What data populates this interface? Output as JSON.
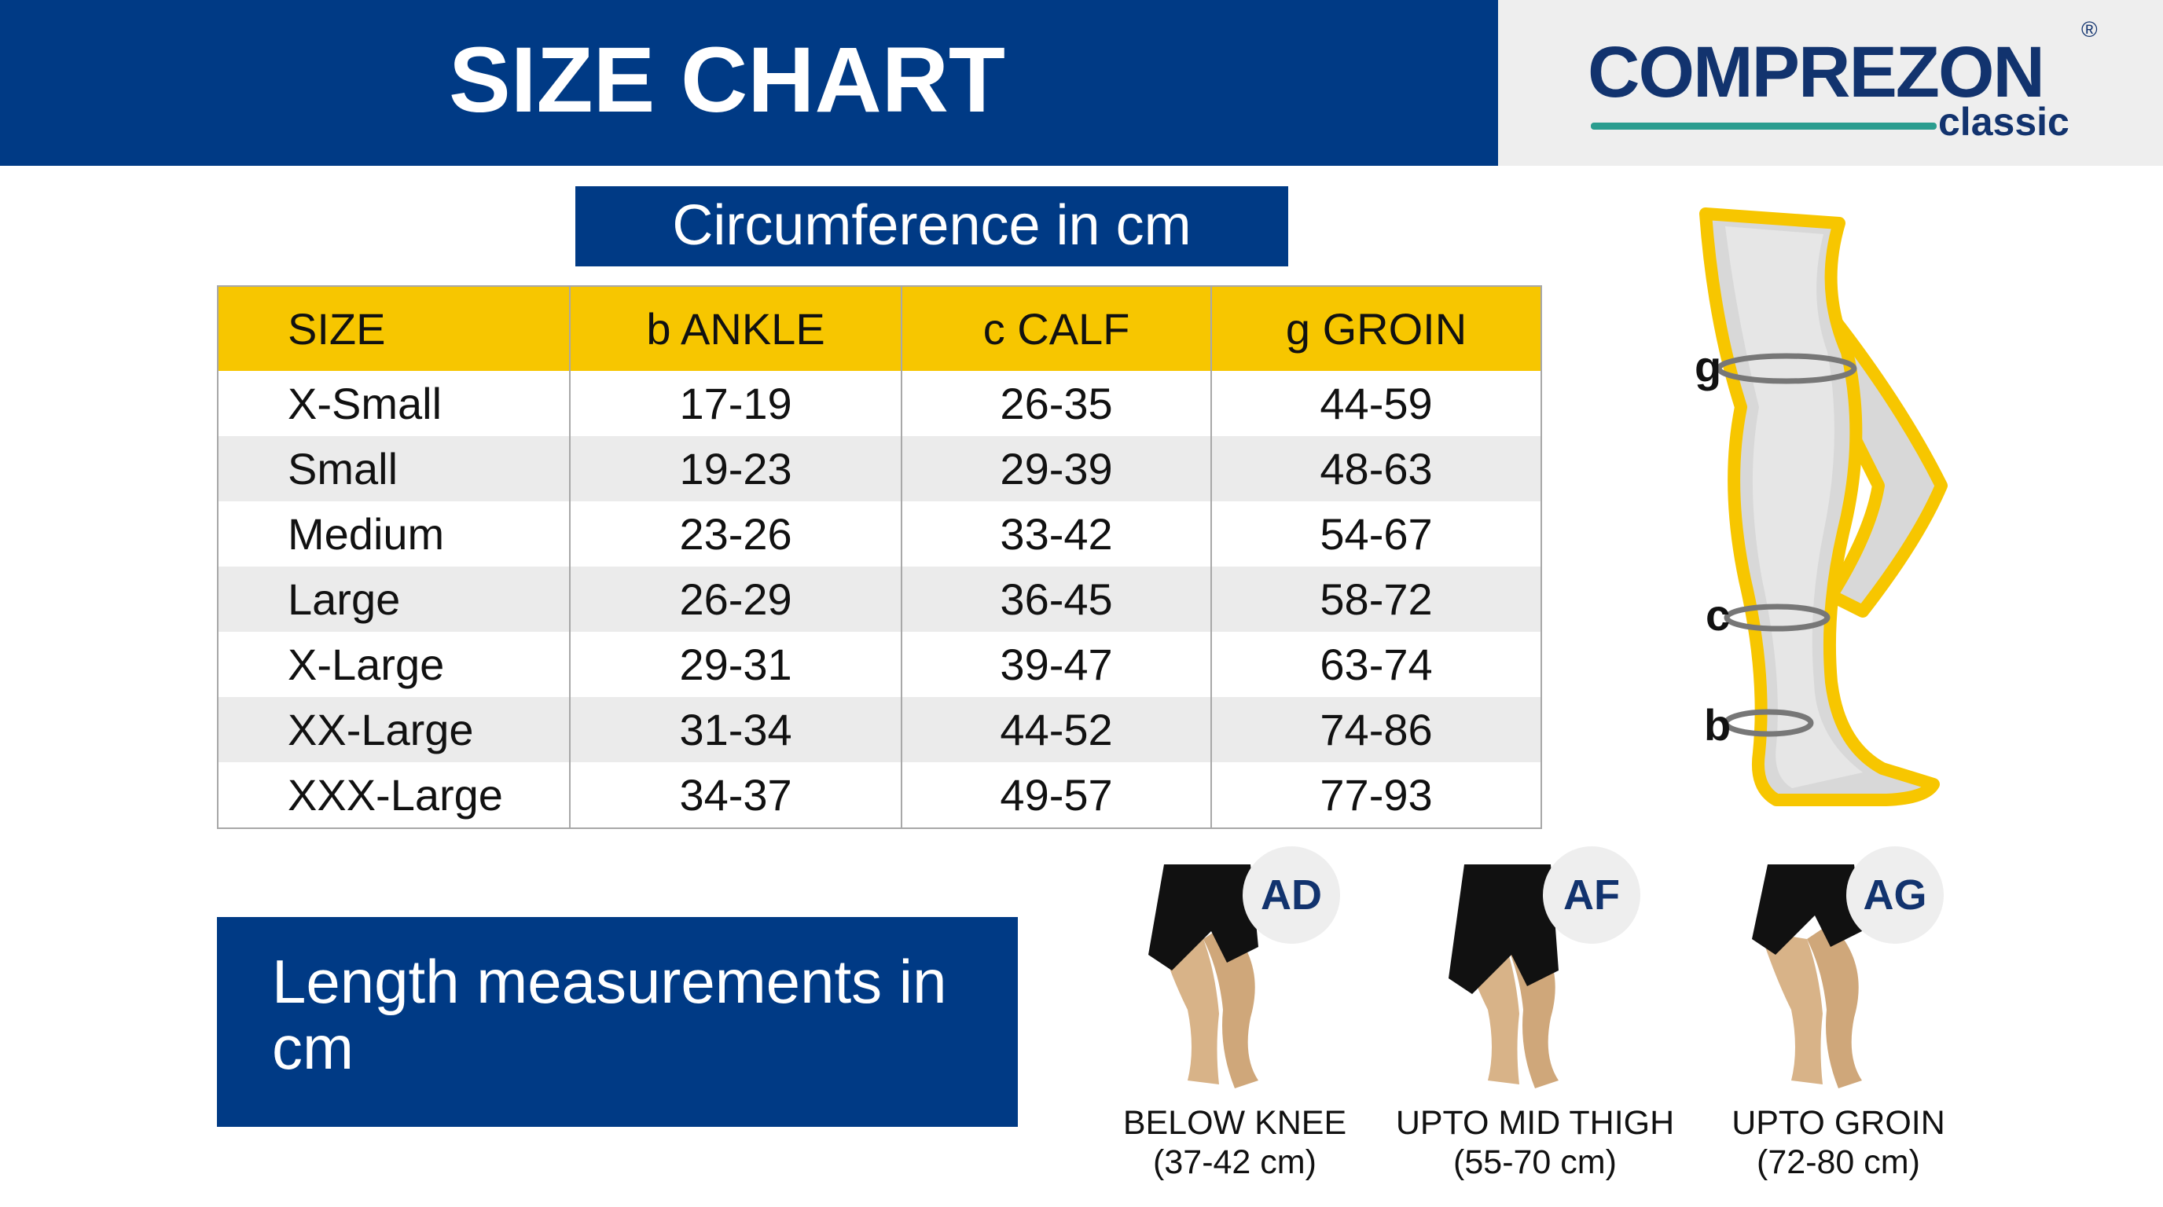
{
  "header": {
    "title": "SIZE CHART"
  },
  "logo": {
    "brand": "COMPREZON",
    "mark": "®",
    "sub": "classic"
  },
  "circumference": {
    "title": "Circumference in cm"
  },
  "table": {
    "columns": [
      "SIZE",
      "b ANKLE",
      "c CALF",
      "g GROIN"
    ],
    "rows": [
      [
        "X-Small",
        "17-19",
        "26-35",
        "44-59"
      ],
      [
        "Small",
        "19-23",
        "29-39",
        "48-63"
      ],
      [
        "Medium",
        "23-26",
        "33-42",
        "54-67"
      ],
      [
        "Large",
        "26-29",
        "36-45",
        "58-72"
      ],
      [
        "X-Large",
        "29-31",
        "39-47",
        "63-74"
      ],
      [
        "XX-Large",
        "31-34",
        "44-52",
        "74-86"
      ],
      [
        "XXX-Large",
        "34-37",
        "49-57",
        "77-93"
      ]
    ]
  },
  "length": {
    "title": "Length measurements in cm"
  },
  "diagram": {
    "labels": [
      "g",
      "c",
      "b"
    ]
  },
  "options": [
    {
      "code": "AD",
      "name": "BELOW KNEE",
      "range": "(37-42 cm)"
    },
    {
      "code": "AF",
      "name": "UPTO MID THIGH",
      "range": "(55-70 cm)"
    },
    {
      "code": "AG",
      "name": "UPTO GROIN",
      "range": "(72-80 cm)"
    }
  ]
}
